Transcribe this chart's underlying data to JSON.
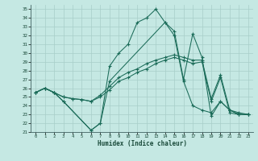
{
  "xlabel": "Humidex (Indice chaleur)",
  "bg_color": "#c5e8e3",
  "grid_color": "#a8cec8",
  "line_color": "#1a6b58",
  "xlim": [
    -0.5,
    23.5
  ],
  "ylim": [
    21,
    35.5
  ],
  "yticks": [
    21,
    22,
    23,
    24,
    25,
    26,
    27,
    28,
    29,
    30,
    31,
    32,
    33,
    34,
    35
  ],
  "xticks": [
    0,
    1,
    2,
    3,
    4,
    5,
    6,
    7,
    8,
    9,
    10,
    11,
    12,
    13,
    14,
    15,
    16,
    17,
    18,
    19,
    20,
    21,
    22,
    23
  ],
  "lines": [
    {
      "x": [
        0,
        1,
        2,
        3,
        6,
        7,
        8,
        9,
        10,
        11,
        12,
        13,
        14,
        15,
        16,
        17,
        18,
        19,
        20,
        21,
        22,
        23
      ],
      "y": [
        25.5,
        26,
        25.5,
        24.5,
        21.2,
        22.0,
        28.5,
        30.0,
        31.0,
        33.5,
        34.0,
        35.0,
        33.5,
        32.5,
        27.0,
        32.2,
        29.5,
        22.8,
        24.5,
        23.5,
        23.0,
        23.0
      ]
    },
    {
      "x": [
        0,
        1,
        2,
        3,
        4,
        5,
        6,
        7,
        8,
        9,
        10,
        11,
        12,
        13,
        14,
        15,
        16,
        17,
        18,
        19,
        20,
        21,
        22,
        23
      ],
      "y": [
        25.5,
        26,
        25.5,
        25,
        24.8,
        24.7,
        24.5,
        25.2,
        26.2,
        27.2,
        27.8,
        28.2,
        28.8,
        29.2,
        29.5,
        29.8,
        29.5,
        29.2,
        29.2,
        24.8,
        27.5,
        23.5,
        23.2,
        23.0
      ]
    },
    {
      "x": [
        0,
        1,
        2,
        3,
        4,
        5,
        6,
        7,
        8,
        9,
        10,
        11,
        12,
        13,
        14,
        15,
        16,
        17,
        18,
        19,
        20,
        21,
        22,
        23
      ],
      "y": [
        25.5,
        26,
        25.5,
        25,
        24.8,
        24.7,
        24.5,
        25.0,
        25.8,
        26.8,
        27.2,
        27.8,
        28.2,
        28.8,
        29.2,
        29.5,
        29.2,
        28.8,
        29.0,
        24.5,
        27.2,
        23.2,
        23.0,
        23.0
      ]
    },
    {
      "x": [
        0,
        1,
        2,
        3,
        6,
        7,
        8,
        14,
        15,
        16,
        17,
        18,
        19,
        20,
        21,
        22,
        23
      ],
      "y": [
        25.5,
        26,
        25.5,
        24.5,
        21.2,
        22.0,
        26.8,
        33.5,
        32.0,
        26.8,
        24.0,
        23.5,
        23.2,
        24.5,
        23.5,
        23.0,
        23.0
      ]
    }
  ]
}
